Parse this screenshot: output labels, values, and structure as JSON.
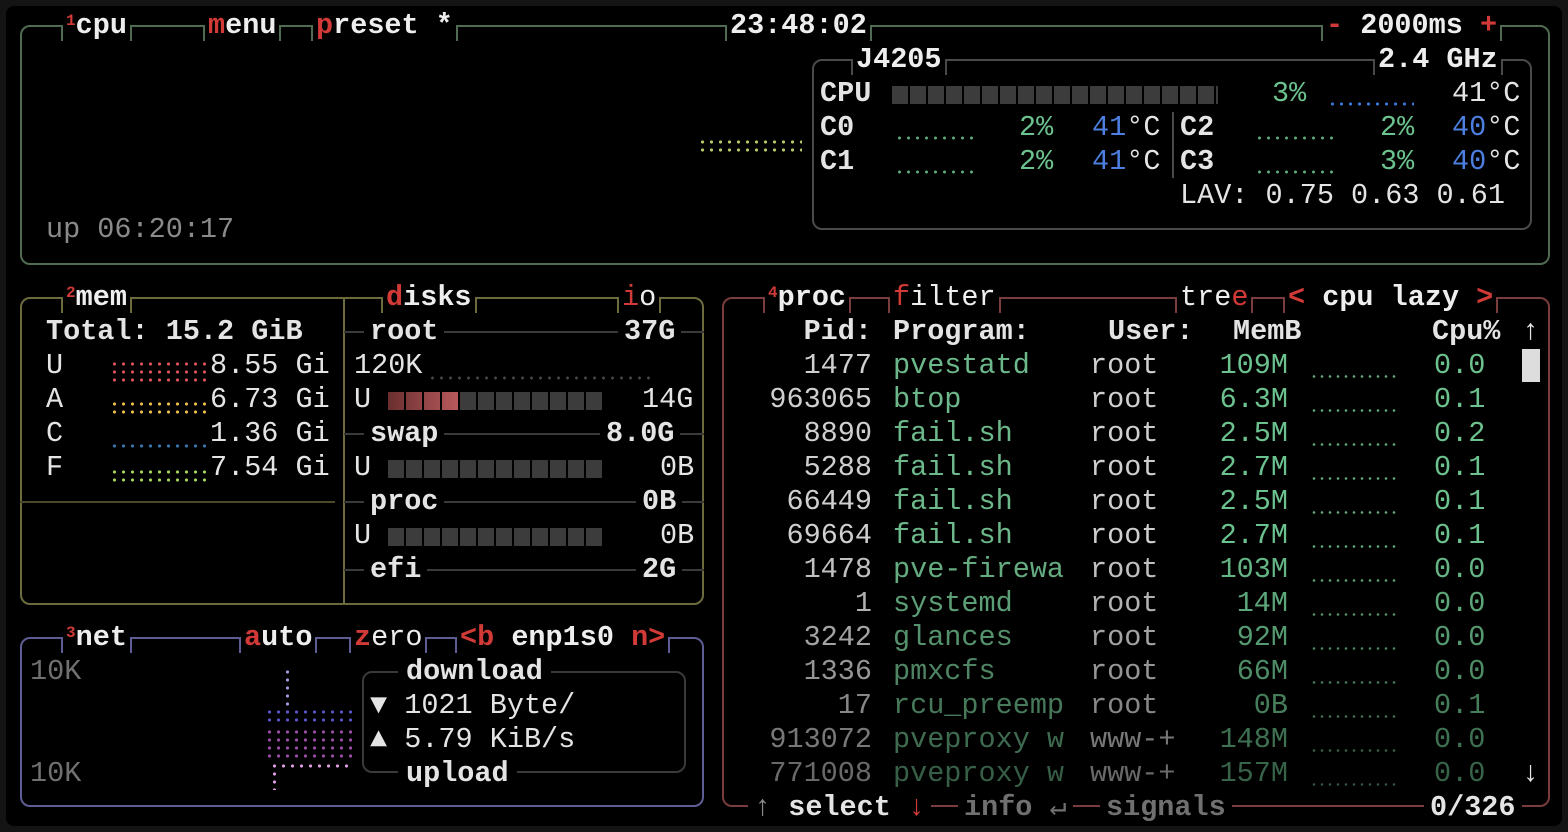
{
  "colors": {
    "accent": "#d13a36",
    "cpu_box": "#4f6b52",
    "mem_box": "#6d6b3e",
    "net_box": "#5d5c93",
    "proc_box": "#7a3d3d",
    "value_green": "#6cc28e",
    "temp_blue": "#4d7fe0"
  },
  "cpu": {
    "num": "1",
    "title": "cpu",
    "menu_key": "m",
    "menu_rest": "enu",
    "preset_key": "p",
    "preset_rest": "reset *",
    "clock": "23:48:02",
    "minus": "-",
    "interval": "2000ms",
    "plus": "+",
    "model": "J4205",
    "freq": "2.4 GHz",
    "total_label": "CPU",
    "total_pct": "3%",
    "total_pct_value": 3,
    "total_temp": "41°C",
    "cores": [
      {
        "label": "C0",
        "pct": "2%",
        "temp": "41",
        "unit": "°C"
      },
      {
        "label": "C1",
        "pct": "2%",
        "temp": "41",
        "unit": "°C"
      },
      {
        "label": "C2",
        "pct": "2%",
        "temp": "40",
        "unit": "°C"
      },
      {
        "label": "C3",
        "pct": "3%",
        "temp": "40",
        "unit": "°C"
      }
    ],
    "lav_label": "LAV:",
    "lav": "0.75 0.63 0.61",
    "uptime": "up 06:20:17"
  },
  "mem": {
    "num": "2",
    "title": "mem",
    "total": "Total: 15.2 GiB",
    "rows": [
      {
        "label": "U",
        "value": "8.55 Gi",
        "color": "#e0525a"
      },
      {
        "label": "A",
        "value": "6.73 Gi",
        "color": "#e8c14a"
      },
      {
        "label": "C",
        "value": "1.36 Gi",
        "color": "#3a78b0"
      },
      {
        "label": "F",
        "value": "7.54 Gi",
        "color": "#a6d45a"
      }
    ]
  },
  "disks": {
    "title_key": "d",
    "title_rest": "isks",
    "io_key": "i",
    "io_rest": "o",
    "items": [
      {
        "name": "root",
        "size": "37G",
        "io": "120K",
        "used_label": "U",
        "used": "14G",
        "used_pct": 33
      },
      {
        "name": "swap",
        "size": "8.0G",
        "used_label": "U",
        "used": "0B",
        "used_pct": 0
      },
      {
        "name": "proc",
        "size": "0B",
        "used_label": "U",
        "used": "0B",
        "used_pct": 0
      },
      {
        "name": "efi",
        "size": "2G"
      }
    ]
  },
  "net": {
    "num": "3",
    "title": "net",
    "auto_key": "a",
    "auto_rest": "uto",
    "zero_key": "z",
    "zero_rest": "ero",
    "prev": "<b",
    "iface": "enp1s0",
    "next": "n>",
    "scale_top": "10K",
    "scale_bottom": "10K",
    "download_label": "download",
    "download_icon": "▼",
    "download_rate": "1021 Byte/",
    "upload_icon": "▲",
    "upload_rate": "5.79 KiB/s",
    "upload_label": "upload"
  },
  "proc": {
    "num": "4",
    "title": "proc",
    "filter_key": "f",
    "filter_rest": "ilter",
    "tree_rest": "tre",
    "tree_key": "e",
    "sort_prev": "<",
    "sort": "cpu lazy",
    "sort_next": ">",
    "columns": {
      "pid": "Pid:",
      "program": "Program:",
      "user": "User:",
      "mem": "MemB",
      "cpu": "Cpu%"
    },
    "scroll_up": "↑",
    "scroll_down": "↓",
    "rows": [
      {
        "pid": "1477",
        "program": "pvestatd",
        "user": "root",
        "mem": "109M",
        "cpu": "0.0"
      },
      {
        "pid": "963065",
        "program": "btop",
        "user": "root",
        "mem": "6.3M",
        "cpu": "0.1"
      },
      {
        "pid": "8890",
        "program": "fail.sh",
        "user": "root",
        "mem": "2.5M",
        "cpu": "0.2"
      },
      {
        "pid": "5288",
        "program": "fail.sh",
        "user": "root",
        "mem": "2.7M",
        "cpu": "0.1"
      },
      {
        "pid": "66449",
        "program": "fail.sh",
        "user": "root",
        "mem": "2.5M",
        "cpu": "0.1"
      },
      {
        "pid": "69664",
        "program": "fail.sh",
        "user": "root",
        "mem": "2.7M",
        "cpu": "0.1"
      },
      {
        "pid": "1478",
        "program": "pve-firewa",
        "user": "root",
        "mem": "103M",
        "cpu": "0.0"
      },
      {
        "pid": "1",
        "program": "systemd",
        "user": "root",
        "mem": "14M",
        "cpu": "0.0"
      },
      {
        "pid": "3242",
        "program": "glances",
        "user": "root",
        "mem": "92M",
        "cpu": "0.0"
      },
      {
        "pid": "1336",
        "program": "pmxcfs",
        "user": "root",
        "mem": "66M",
        "cpu": "0.0"
      },
      {
        "pid": "17",
        "program": "rcu_preemp",
        "user": "root",
        "mem": "0B",
        "cpu": "0.1"
      },
      {
        "pid": "913072",
        "program": "pveproxy w",
        "user": "www-+",
        "mem": "148M",
        "cpu": "0.0"
      },
      {
        "pid": "771008",
        "program": "pveproxy w",
        "user": "www-+",
        "mem": "157M",
        "cpu": "0.0"
      }
    ],
    "footer": {
      "up": "↑",
      "select": "select",
      "down": "↓",
      "info": "info",
      "enter": "↵",
      "signals": "signals",
      "count": "0/326"
    }
  }
}
